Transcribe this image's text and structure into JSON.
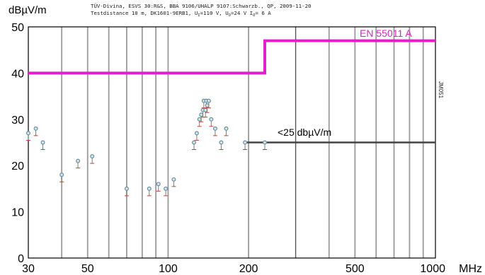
{
  "header": {
    "line1": "TÜV-Divina, ESVS 30:R&S, BBA 9106/UHALP 9107:Schwarzb., QP, 2009-11-20",
    "line2": {
      "a": "Testdistance 10 m, DK1601-9ERB1, U",
      "a_sub": "I",
      "b": "=110 V, U",
      "b_sub": "O",
      "c": "=24 V I",
      "c_sub": "O",
      "d": "= 6 A"
    }
  },
  "chart_data": {
    "type": "scatter",
    "title": "",
    "ylabel": "dBµV/m",
    "xunit": "MHz",
    "xscale": "log",
    "xlim": [
      30,
      1000
    ],
    "ylim": [
      0,
      50
    ],
    "x_ticks": [
      30,
      50,
      100,
      200,
      500,
      1000
    ],
    "x_tick_labels": [
      "30",
      "50",
      "100",
      "200",
      "500",
      "1000"
    ],
    "y_ticks": [
      0,
      10,
      20,
      30,
      40,
      50
    ],
    "y_tick_labels": [
      "0",
      "10",
      "20",
      "30",
      "40",
      "50"
    ],
    "grid_x": [
      40,
      60,
      70,
      80,
      90,
      300,
      400,
      600,
      700,
      800,
      900
    ],
    "major_grid_x": 300,
    "limit_line": {
      "name": "EN 55011 A",
      "color": "#e020c8",
      "points": [
        [
          30,
          40
        ],
        [
          230,
          40
        ],
        [
          230,
          47
        ],
        [
          1000,
          47
        ]
      ]
    },
    "reference_line": {
      "label": "<25 dbµV/m",
      "color": "#444444",
      "points": [
        [
          195,
          25
        ],
        [
          1000,
          25
        ]
      ]
    },
    "series": [
      {
        "color": "#6a8fa0",
        "points": [
          [
            30,
            27
          ],
          [
            32,
            28
          ],
          [
            34,
            25
          ],
          [
            40,
            18
          ],
          [
            46,
            21
          ],
          [
            52,
            22
          ],
          [
            70,
            15
          ],
          [
            85,
            15
          ],
          [
            92,
            16
          ],
          [
            98,
            15
          ],
          [
            105,
            17
          ],
          [
            125,
            25
          ],
          [
            128,
            27
          ],
          [
            131,
            30
          ],
          [
            133,
            31
          ],
          [
            135,
            32
          ],
          [
            136,
            34
          ],
          [
            138,
            32
          ],
          [
            139,
            34
          ],
          [
            140,
            33
          ],
          [
            142,
            34
          ],
          [
            145,
            30
          ],
          [
            150,
            28
          ],
          [
            158,
            25
          ],
          [
            165,
            28
          ],
          [
            194,
            25
          ],
          [
            230,
            25
          ]
        ]
      }
    ],
    "side_code": "JM051"
  }
}
